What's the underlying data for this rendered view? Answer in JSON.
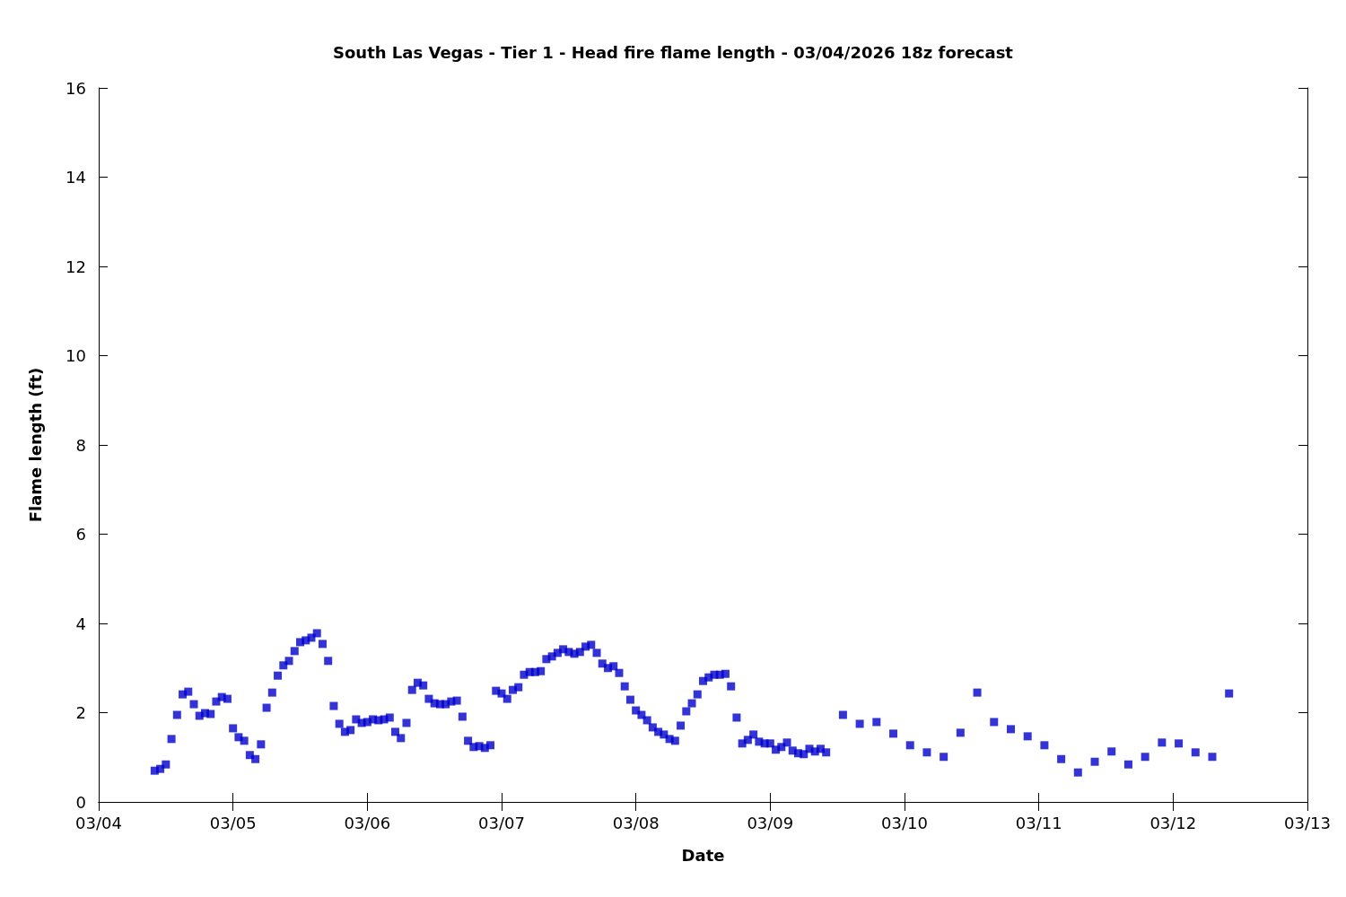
{
  "chart_data": {
    "type": "scatter",
    "title": "South Las Vegas - Tier 1 - Head fire flame length - 03/04/2026 18z forecast",
    "xlabel": "Date",
    "ylabel": "Flame length (ft)",
    "x": [
      "2026-03-04T10:00",
      "2026-03-04T11:00",
      "2026-03-04T12:00",
      "2026-03-04T13:00",
      "2026-03-04T14:00",
      "2026-03-04T15:00",
      "2026-03-04T16:00",
      "2026-03-04T17:00",
      "2026-03-04T18:00",
      "2026-03-04T19:00",
      "2026-03-04T20:00",
      "2026-03-04T21:00",
      "2026-03-04T22:00",
      "2026-03-04T23:00",
      "2026-03-05T00:00",
      "2026-03-05T01:00",
      "2026-03-05T02:00",
      "2026-03-05T03:00",
      "2026-03-05T04:00",
      "2026-03-05T05:00",
      "2026-03-05T06:00",
      "2026-03-05T07:00",
      "2026-03-05T08:00",
      "2026-03-05T09:00",
      "2026-03-05T10:00",
      "2026-03-05T11:00",
      "2026-03-05T12:00",
      "2026-03-05T13:00",
      "2026-03-05T14:00",
      "2026-03-05T15:00",
      "2026-03-05T16:00",
      "2026-03-05T17:00",
      "2026-03-05T18:00",
      "2026-03-05T19:00",
      "2026-03-05T20:00",
      "2026-03-05T21:00",
      "2026-03-05T22:00",
      "2026-03-05T23:00",
      "2026-03-06T00:00",
      "2026-03-06T01:00",
      "2026-03-06T02:00",
      "2026-03-06T03:00",
      "2026-03-06T04:00",
      "2026-03-06T05:00",
      "2026-03-06T06:00",
      "2026-03-06T07:00",
      "2026-03-06T08:00",
      "2026-03-06T09:00",
      "2026-03-06T10:00",
      "2026-03-06T11:00",
      "2026-03-06T12:00",
      "2026-03-06T13:00",
      "2026-03-06T14:00",
      "2026-03-06T15:00",
      "2026-03-06T16:00",
      "2026-03-06T17:00",
      "2026-03-06T18:00",
      "2026-03-06T19:00",
      "2026-03-06T20:00",
      "2026-03-06T21:00",
      "2026-03-06T22:00",
      "2026-03-06T23:00",
      "2026-03-07T00:00",
      "2026-03-07T01:00",
      "2026-03-07T02:00",
      "2026-03-07T03:00",
      "2026-03-07T04:00",
      "2026-03-07T05:00",
      "2026-03-07T06:00",
      "2026-03-07T07:00",
      "2026-03-07T08:00",
      "2026-03-07T09:00",
      "2026-03-07T10:00",
      "2026-03-07T11:00",
      "2026-03-07T12:00",
      "2026-03-07T13:00",
      "2026-03-07T14:00",
      "2026-03-07T15:00",
      "2026-03-07T16:00",
      "2026-03-07T17:00",
      "2026-03-07T18:00",
      "2026-03-07T19:00",
      "2026-03-07T20:00",
      "2026-03-07T21:00",
      "2026-03-07T22:00",
      "2026-03-07T23:00",
      "2026-03-08T00:00",
      "2026-03-08T01:00",
      "2026-03-08T02:00",
      "2026-03-08T03:00",
      "2026-03-08T04:00",
      "2026-03-08T05:00",
      "2026-03-08T06:00",
      "2026-03-08T07:00",
      "2026-03-08T08:00",
      "2026-03-08T09:00",
      "2026-03-08T10:00",
      "2026-03-08T11:00",
      "2026-03-08T12:00",
      "2026-03-08T13:00",
      "2026-03-08T14:00",
      "2026-03-08T15:00",
      "2026-03-08T16:00",
      "2026-03-08T17:00",
      "2026-03-08T18:00",
      "2026-03-08T19:00",
      "2026-03-08T20:00",
      "2026-03-08T21:00",
      "2026-03-08T22:00",
      "2026-03-08T23:00",
      "2026-03-09T00:00",
      "2026-03-09T01:00",
      "2026-03-09T02:00",
      "2026-03-09T03:00",
      "2026-03-09T04:00",
      "2026-03-09T05:00",
      "2026-03-09T06:00",
      "2026-03-09T07:00",
      "2026-03-09T08:00",
      "2026-03-09T09:00",
      "2026-03-09T10:00",
      "2026-03-09T13:00",
      "2026-03-09T16:00",
      "2026-03-09T19:00",
      "2026-03-09T22:00",
      "2026-03-10T01:00",
      "2026-03-10T04:00",
      "2026-03-10T07:00",
      "2026-03-10T10:00",
      "2026-03-10T13:00",
      "2026-03-10T16:00",
      "2026-03-10T19:00",
      "2026-03-10T22:00",
      "2026-03-11T01:00",
      "2026-03-11T04:00",
      "2026-03-11T07:00",
      "2026-03-11T10:00",
      "2026-03-11T13:00",
      "2026-03-11T16:00",
      "2026-03-11T19:00",
      "2026-03-11T22:00",
      "2026-03-12T01:00",
      "2026-03-12T04:00",
      "2026-03-12T07:00",
      "2026-03-12T10:00"
    ],
    "series": [
      {
        "color": "#0000cc",
        "values": [
          0.7,
          0.74,
          0.84,
          1.41,
          1.95,
          2.41,
          2.47,
          2.19,
          1.93,
          1.99,
          1.97,
          2.25,
          2.35,
          2.31,
          1.65,
          1.45,
          1.37,
          1.05,
          0.96,
          1.29,
          2.11,
          2.45,
          2.83,
          3.06,
          3.16,
          3.38,
          3.58,
          3.62,
          3.68,
          3.78,
          3.54,
          3.16,
          2.15,
          1.75,
          1.57,
          1.61,
          1.85,
          1.77,
          1.79,
          1.85,
          1.83,
          1.85,
          1.89,
          1.57,
          1.43,
          1.77,
          2.51,
          2.67,
          2.61,
          2.31,
          2.21,
          2.19,
          2.19,
          2.25,
          2.27,
          1.91,
          1.37,
          1.23,
          1.25,
          1.21,
          1.27,
          2.49,
          2.43,
          2.31,
          2.51,
          2.57,
          2.85,
          2.91,
          2.91,
          2.93,
          3.2,
          3.26,
          3.34,
          3.42,
          3.36,
          3.32,
          3.36,
          3.48,
          3.52,
          3.34,
          3.1,
          3.0,
          3.04,
          2.89,
          2.59,
          2.29,
          2.05,
          1.95,
          1.83,
          1.67,
          1.57,
          1.51,
          1.41,
          1.37,
          1.71,
          2.03,
          2.21,
          2.41,
          2.71,
          2.79,
          2.85,
          2.85,
          2.87,
          2.59,
          1.89,
          1.31,
          1.39,
          1.51,
          1.35,
          1.31,
          1.31,
          1.17,
          1.23,
          1.33,
          1.15,
          1.09,
          1.07,
          1.19,
          1.13,
          1.19,
          1.11,
          1.95,
          1.75,
          1.79,
          1.53,
          1.27,
          1.11,
          1.01,
          1.55,
          2.45,
          1.79,
          1.63,
          1.47,
          1.27,
          0.96,
          0.66,
          0.9,
          1.13,
          0.84,
          1.01,
          1.33,
          1.31,
          1.11,
          1.01,
          2.43
        ]
      }
    ],
    "xlim": [
      "2026-03-04",
      "2026-03-13"
    ],
    "xticks": [
      {
        "value": "2026-03-04",
        "label": "03/04"
      },
      {
        "value": "2026-03-05",
        "label": "03/05"
      },
      {
        "value": "2026-03-06",
        "label": "03/06"
      },
      {
        "value": "2026-03-07",
        "label": "03/07"
      },
      {
        "value": "2026-03-08",
        "label": "03/08"
      },
      {
        "value": "2026-03-09",
        "label": "03/09"
      },
      {
        "value": "2026-03-10",
        "label": "03/10"
      },
      {
        "value": "2026-03-11",
        "label": "03/11"
      },
      {
        "value": "2026-03-12",
        "label": "03/12"
      },
      {
        "value": "2026-03-13",
        "label": "03/13"
      }
    ],
    "ylim": [
      0,
      16
    ],
    "yticks": [
      0,
      2,
      4,
      6,
      8,
      10,
      12,
      14,
      16
    ],
    "grid": false,
    "marker": "square"
  }
}
